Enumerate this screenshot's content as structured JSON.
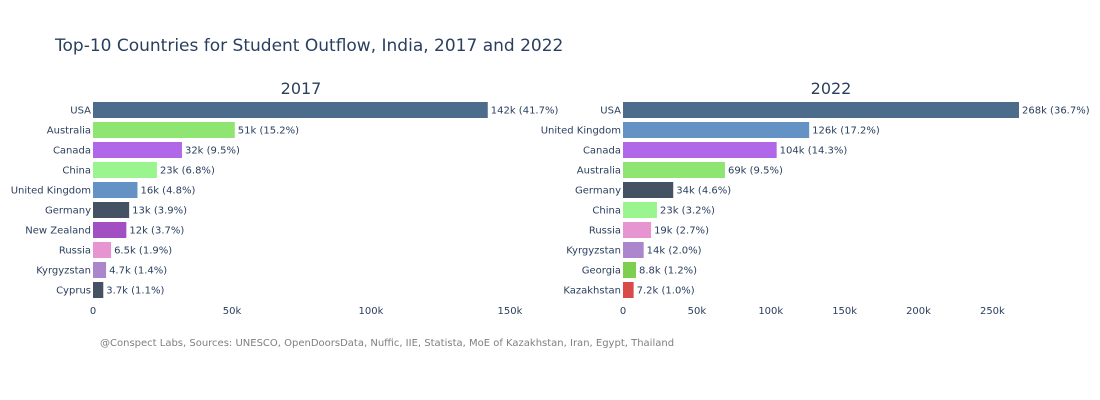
{
  "chart_data": {
    "type": "bar",
    "title": "Top-10 Countries for Student Outflow, India, 2017 and 2022",
    "source": "@Conspect Labs, Sources: UNESCO, OpenDoorsData, Nuffic, IIE, Statista, MoE of Kazakhstan, Iran, Egypt, Thailand",
    "panels": [
      {
        "subtitle": "2017",
        "orientation": "horizontal",
        "xlim": [
          0,
          150000
        ],
        "ticks": [
          0,
          50000,
          100000,
          150000
        ],
        "tick_labels": [
          "0",
          "50k",
          "100k",
          "150k"
        ],
        "bars": [
          {
            "category": "USA",
            "value": 142000,
            "label": "142k (41.7%)",
            "color": "#4d6b8a"
          },
          {
            "category": "Australia",
            "value": 51000,
            "label": "51k (15.2%)",
            "color": "#8ee571"
          },
          {
            "category": "Canada",
            "value": 32000,
            "label": "32k (9.5%)",
            "color": "#b068e8"
          },
          {
            "category": "China",
            "value": 23000,
            "label": "23k (6.8%)",
            "color": "#9bf58f"
          },
          {
            "category": "United Kingdom",
            "value": 16000,
            "label": "16k (4.8%)",
            "color": "#6492c4"
          },
          {
            "category": "Germany",
            "value": 13000,
            "label": "13k (3.9%)",
            "color": "#445264"
          },
          {
            "category": "New Zealand",
            "value": 12000,
            "label": "12k (3.7%)",
            "color": "#a24fc4"
          },
          {
            "category": "Russia",
            "value": 6500,
            "label": "6.5k (1.9%)",
            "color": "#e795d0"
          },
          {
            "category": "Kyrgyzstan",
            "value": 4700,
            "label": "4.7k (1.4%)",
            "color": "#ab86cc"
          },
          {
            "category": "Cyprus",
            "value": 3700,
            "label": "3.7k (1.1%)",
            "color": "#445264"
          }
        ]
      },
      {
        "subtitle": "2022",
        "orientation": "horizontal",
        "xlim": [
          0,
          268000
        ],
        "ticks": [
          0,
          50000,
          100000,
          150000,
          200000,
          250000
        ],
        "tick_labels": [
          "0",
          "50k",
          "100k",
          "150k",
          "200k",
          "250k"
        ],
        "bars": [
          {
            "category": "USA",
            "value": 268000,
            "label": "268k (36.7%)",
            "color": "#4d6b8a"
          },
          {
            "category": "United Kingdom",
            "value": 126000,
            "label": "126k (17.2%)",
            "color": "#6492c4"
          },
          {
            "category": "Canada",
            "value": 104000,
            "label": "104k (14.3%)",
            "color": "#b068e8"
          },
          {
            "category": "Australia",
            "value": 69000,
            "label": "69k (9.5%)",
            "color": "#8ee571"
          },
          {
            "category": "Germany",
            "value": 34000,
            "label": "34k (4.6%)",
            "color": "#445264"
          },
          {
            "category": "China",
            "value": 23000,
            "label": "23k (3.2%)",
            "color": "#9bf58f"
          },
          {
            "category": "Russia",
            "value": 19000,
            "label": "19k (2.7%)",
            "color": "#e795d0"
          },
          {
            "category": "Kyrgyzstan",
            "value": 14000,
            "label": "14k (2.0%)",
            "color": "#ab86cc"
          },
          {
            "category": "Georgia",
            "value": 8800,
            "label": "8.8k (1.2%)",
            "color": "#7ccf4f"
          },
          {
            "category": "Kazakhstan",
            "value": 7200,
            "label": "7.2k (1.0%)",
            "color": "#d94a4a"
          }
        ]
      }
    ]
  }
}
